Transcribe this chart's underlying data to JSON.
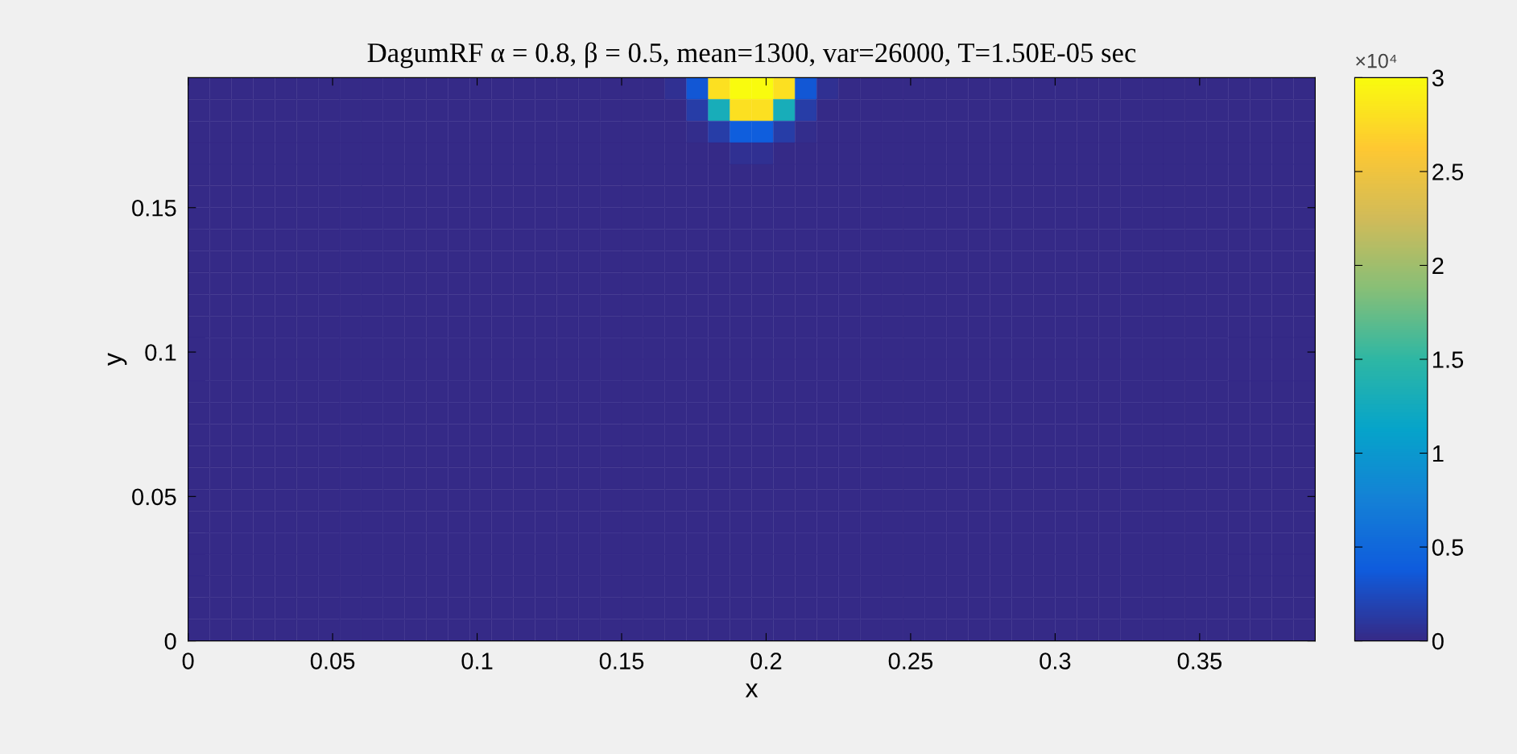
{
  "chart_data": {
    "type": "heatmap",
    "title": "DagumRF α = 0.8, β = 0.5, mean=1300, var=26000, T=1.50E-05 sec",
    "xlabel": "x",
    "ylabel": "y",
    "x": [
      0.00375,
      0.01125,
      0.01875,
      0.02625,
      0.03375,
      0.04125,
      0.04875,
      0.05625,
      0.06375,
      0.07125,
      0.07875,
      0.08625,
      0.09375,
      0.10125,
      0.10875,
      0.11625,
      0.12375,
      0.13125,
      0.13875,
      0.14625,
      0.15375,
      0.16125,
      0.16875,
      0.17625,
      0.18375,
      0.19125,
      0.19875,
      0.20625,
      0.21375,
      0.22125,
      0.22875,
      0.23625,
      0.24375,
      0.25125,
      0.25875,
      0.26625,
      0.27375,
      0.28125,
      0.28875,
      0.29625,
      0.30375,
      0.31125,
      0.31875,
      0.32625,
      0.33375,
      0.34125,
      0.34875,
      0.35625,
      0.36375,
      0.37125,
      0.37875,
      0.38625
    ],
    "y": [
      0.19125,
      0.18375,
      0.17625,
      0.16875,
      0.16125,
      0.15375,
      0.14625,
      0.13875,
      0.13125,
      0.12375,
      0.11625,
      0.10875,
      0.10125,
      0.09375,
      0.08625,
      0.07875,
      0.07125,
      0.06375,
      0.05625,
      0.04875,
      0.04125,
      0.03375,
      0.02625,
      0.01875,
      0.01125,
      0.00375
    ],
    "xlim": [
      0,
      0.39
    ],
    "ylim": [
      0,
      0.195
    ],
    "xticks": [
      0,
      0.05,
      0.1,
      0.15,
      0.2,
      0.25,
      0.3,
      0.35
    ],
    "yticks": [
      0,
      0.05,
      0.1,
      0.15
    ],
    "clim": [
      0,
      3
    ],
    "cticks": [
      0,
      0.5,
      1,
      1.5,
      2,
      2.5,
      3
    ],
    "annotations": [
      "×10⁴"
    ],
    "cells": [
      [
        0,
        0,
        0,
        0,
        0,
        0,
        0,
        0,
        0,
        0,
        0,
        0,
        0,
        0,
        0,
        0,
        0,
        0,
        0,
        0,
        0,
        0,
        0.05,
        0.35,
        2.8,
        3,
        3,
        2.8,
        0.35,
        0.05,
        0,
        0,
        0,
        0,
        0,
        0,
        0,
        0,
        0,
        0,
        0,
        0,
        0,
        0,
        0,
        0,
        0,
        0,
        0,
        0,
        0,
        0
      ],
      [
        0,
        0,
        0,
        0,
        0,
        0,
        0,
        0,
        0,
        0,
        0,
        0,
        0,
        0,
        0,
        0,
        0,
        0,
        0,
        0,
        0,
        0,
        0,
        0.15,
        1.3,
        2.8,
        2.8,
        1.3,
        0.15,
        0,
        0,
        0,
        0,
        0,
        0,
        0,
        0,
        0,
        0,
        0,
        0,
        0,
        0,
        0,
        0,
        0,
        0,
        0,
        0,
        0,
        0,
        0
      ],
      [
        0,
        0,
        0,
        0,
        0,
        0,
        0,
        0,
        0,
        0,
        0,
        0,
        0,
        0,
        0,
        0,
        0,
        0,
        0,
        0,
        0,
        0,
        0,
        0.03,
        0.15,
        0.4,
        0.4,
        0.15,
        0.03,
        0,
        0,
        0,
        0,
        0,
        0,
        0,
        0,
        0,
        0,
        0,
        0,
        0,
        0,
        0,
        0,
        0,
        0,
        0,
        0,
        0,
        0,
        0
      ],
      [
        0,
        0,
        0,
        0,
        0,
        0,
        0,
        0,
        0,
        0,
        0,
        0,
        0,
        0,
        0,
        0,
        0,
        0,
        0,
        0,
        0,
        0,
        0,
        0,
        0,
        0.05,
        0.05,
        0,
        0,
        0,
        0,
        0,
        0,
        0,
        0,
        0,
        0,
        0,
        0,
        0,
        0,
        0,
        0,
        0,
        0,
        0,
        0,
        0,
        0,
        0,
        0,
        0
      ],
      [
        0,
        0,
        0,
        0,
        0,
        0,
        0,
        0,
        0,
        0,
        0,
        0,
        0,
        0,
        0,
        0,
        0,
        0,
        0,
        0,
        0,
        0,
        0,
        0,
        0,
        0,
        0,
        0,
        0,
        0,
        0,
        0,
        0,
        0,
        0,
        0,
        0,
        0,
        0,
        0,
        0,
        0,
        0,
        0,
        0,
        0,
        0,
        0,
        0,
        0,
        0,
        0
      ],
      [
        0,
        0,
        0,
        0,
        0,
        0,
        0,
        0,
        0,
        0,
        0,
        0,
        0,
        0,
        0,
        0,
        0,
        0,
        0,
        0,
        0,
        0,
        0,
        0,
        0,
        0,
        0,
        0,
        0,
        0,
        0,
        0,
        0,
        0,
        0,
        0,
        0,
        0,
        0,
        0,
        0,
        0,
        0,
        0,
        0,
        0,
        0,
        0,
        0,
        0,
        0,
        0
      ],
      [
        0,
        0,
        0,
        0,
        0,
        0,
        0,
        0,
        0,
        0,
        0,
        0,
        0,
        0,
        0,
        0,
        0,
        0,
        0,
        0,
        0,
        0,
        0,
        0,
        0,
        0,
        0,
        0,
        0,
        0,
        0,
        0,
        0,
        0,
        0,
        0,
        0,
        0,
        0,
        0,
        0,
        0,
        0,
        0,
        0,
        0,
        0,
        0,
        0,
        0,
        0,
        0
      ],
      [
        0,
        0,
        0,
        0,
        0,
        0,
        0,
        0,
        0,
        0,
        0,
        0,
        0,
        0,
        0,
        0,
        0,
        0,
        0,
        0,
        0,
        0,
        0,
        0,
        0,
        0,
        0,
        0,
        0,
        0,
        0,
        0,
        0,
        0,
        0,
        0,
        0,
        0,
        0,
        0,
        0,
        0,
        0,
        0,
        0,
        0,
        0,
        0,
        0,
        0,
        0,
        0
      ],
      [
        0,
        0,
        0,
        0,
        0,
        0,
        0,
        0,
        0,
        0,
        0,
        0,
        0,
        0,
        0,
        0,
        0,
        0,
        0,
        0,
        0,
        0,
        0,
        0,
        0,
        0,
        0,
        0,
        0,
        0,
        0,
        0,
        0,
        0,
        0,
        0,
        0,
        0,
        0,
        0,
        0,
        0,
        0,
        0,
        0,
        0,
        0,
        0,
        0,
        0,
        0,
        0
      ],
      [
        0,
        0,
        0,
        0,
        0,
        0,
        0,
        0,
        0,
        0,
        0,
        0,
        0,
        0,
        0,
        0,
        0,
        0,
        0,
        0,
        0,
        0,
        0,
        0,
        0,
        0,
        0,
        0,
        0,
        0,
        0,
        0,
        0,
        0,
        0,
        0,
        0,
        0,
        0,
        0,
        0,
        0,
        0,
        0,
        0,
        0,
        0,
        0,
        0,
        0,
        0,
        0
      ],
      [
        0,
        0,
        0,
        0,
        0,
        0,
        0,
        0,
        0,
        0,
        0,
        0,
        0,
        0,
        0,
        0,
        0,
        0,
        0,
        0,
        0,
        0,
        0,
        0,
        0,
        0,
        0,
        0,
        0,
        0,
        0,
        0,
        0,
        0,
        0,
        0,
        0,
        0,
        0,
        0,
        0,
        0,
        0,
        0,
        0,
        0,
        0,
        0,
        0,
        0,
        0,
        0
      ],
      [
        0,
        0,
        0,
        0,
        0,
        0,
        0,
        0,
        0,
        0,
        0,
        0,
        0,
        0,
        0,
        0,
        0,
        0,
        0,
        0,
        0,
        0,
        0,
        0,
        0,
        0,
        0,
        0,
        0,
        0,
        0,
        0,
        0,
        0,
        0,
        0,
        0,
        0,
        0,
        0,
        0,
        0,
        0,
        0,
        0,
        0,
        0,
        0,
        0,
        0,
        0,
        0
      ],
      [
        0,
        0,
        0,
        0,
        0,
        0,
        0,
        0,
        0,
        0,
        0,
        0,
        0,
        0,
        0,
        0,
        0,
        0,
        0,
        0,
        0,
        0,
        0,
        0,
        0,
        0,
        0,
        0,
        0,
        0,
        0,
        0,
        0,
        0,
        0,
        0,
        0,
        0,
        0,
        0,
        0,
        0,
        0,
        0,
        0,
        0,
        0,
        0,
        0,
        0,
        0,
        0
      ],
      [
        0,
        0,
        0,
        0,
        0,
        0,
        0,
        0,
        0,
        0,
        0,
        0,
        0,
        0,
        0,
        0,
        0,
        0,
        0,
        0,
        0,
        0,
        0,
        0,
        0,
        0,
        0,
        0,
        0,
        0,
        0,
        0,
        0,
        0,
        0,
        0,
        0,
        0,
        0,
        0,
        0,
        0,
        0,
        0,
        0,
        0,
        0,
        0,
        0,
        0,
        0,
        0
      ],
      [
        0,
        0,
        0,
        0,
        0,
        0,
        0,
        0,
        0,
        0,
        0,
        0,
        0,
        0,
        0,
        0,
        0,
        0,
        0,
        0,
        0,
        0,
        0,
        0,
        0,
        0,
        0,
        0,
        0,
        0,
        0,
        0,
        0,
        0,
        0,
        0,
        0,
        0,
        0,
        0,
        0,
        0,
        0,
        0,
        0,
        0,
        0,
        0,
        0,
        0,
        0,
        0
      ],
      [
        0,
        0,
        0,
        0,
        0,
        0,
        0,
        0,
        0,
        0,
        0,
        0,
        0,
        0,
        0,
        0,
        0,
        0,
        0,
        0,
        0,
        0,
        0,
        0,
        0,
        0,
        0,
        0,
        0,
        0,
        0,
        0,
        0,
        0,
        0,
        0,
        0,
        0,
        0,
        0,
        0,
        0,
        0,
        0,
        0,
        0,
        0,
        0,
        0,
        0,
        0,
        0
      ],
      [
        0,
        0,
        0,
        0,
        0,
        0,
        0,
        0,
        0,
        0,
        0,
        0,
        0,
        0,
        0,
        0,
        0,
        0,
        0,
        0,
        0,
        0,
        0,
        0,
        0,
        0,
        0,
        0,
        0,
        0,
        0,
        0,
        0,
        0,
        0,
        0,
        0,
        0,
        0,
        0,
        0,
        0,
        0,
        0,
        0,
        0,
        0,
        0,
        0,
        0,
        0,
        0
      ],
      [
        0,
        0,
        0,
        0,
        0,
        0,
        0,
        0,
        0,
        0,
        0,
        0,
        0,
        0,
        0,
        0,
        0,
        0,
        0,
        0,
        0,
        0,
        0,
        0,
        0,
        0,
        0,
        0,
        0,
        0,
        0,
        0,
        0,
        0,
        0,
        0,
        0,
        0,
        0,
        0,
        0,
        0,
        0,
        0,
        0,
        0,
        0,
        0,
        0,
        0,
        0,
        0
      ],
      [
        0,
        0,
        0,
        0,
        0,
        0,
        0,
        0,
        0,
        0,
        0,
        0,
        0,
        0,
        0,
        0,
        0,
        0,
        0,
        0,
        0,
        0,
        0,
        0,
        0,
        0,
        0,
        0,
        0,
        0,
        0,
        0,
        0,
        0,
        0,
        0,
        0,
        0,
        0,
        0,
        0,
        0,
        0,
        0,
        0,
        0,
        0,
        0,
        0,
        0,
        0,
        0
      ],
      [
        0,
        0,
        0,
        0,
        0,
        0,
        0,
        0,
        0,
        0,
        0,
        0,
        0,
        0,
        0,
        0,
        0,
        0,
        0,
        0,
        0,
        0,
        0,
        0,
        0,
        0,
        0,
        0,
        0,
        0,
        0,
        0,
        0,
        0,
        0,
        0,
        0,
        0,
        0,
        0,
        0,
        0,
        0,
        0,
        0,
        0,
        0,
        0,
        0,
        0,
        0,
        0
      ],
      [
        0,
        0,
        0,
        0,
        0,
        0,
        0,
        0,
        0,
        0,
        0,
        0,
        0,
        0,
        0,
        0,
        0,
        0,
        0,
        0,
        0,
        0,
        0,
        0,
        0,
        0,
        0,
        0,
        0,
        0,
        0,
        0,
        0,
        0,
        0,
        0,
        0,
        0,
        0,
        0,
        0,
        0,
        0,
        0,
        0,
        0,
        0,
        0,
        0,
        0,
        0,
        0
      ],
      [
        0,
        0,
        0,
        0,
        0,
        0,
        0,
        0,
        0,
        0,
        0,
        0,
        0,
        0,
        0,
        0,
        0,
        0,
        0,
        0,
        0,
        0,
        0,
        0,
        0,
        0,
        0,
        0,
        0,
        0,
        0,
        0,
        0,
        0,
        0,
        0,
        0,
        0,
        0,
        0,
        0,
        0,
        0,
        0,
        0,
        0,
        0,
        0,
        0,
        0,
        0,
        0
      ],
      [
        0,
        0,
        0,
        0,
        0,
        0,
        0,
        0,
        0,
        0,
        0,
        0,
        0,
        0,
        0,
        0,
        0,
        0,
        0,
        0,
        0,
        0,
        0,
        0,
        0,
        0,
        0,
        0,
        0,
        0,
        0,
        0,
        0,
        0,
        0,
        0,
        0,
        0,
        0,
        0,
        0,
        0,
        0,
        0,
        0,
        0,
        0,
        0,
        0,
        0,
        0,
        0
      ],
      [
        0,
        0,
        0,
        0,
        0,
        0,
        0,
        0,
        0,
        0,
        0,
        0,
        0,
        0,
        0,
        0,
        0,
        0,
        0,
        0,
        0,
        0,
        0,
        0,
        0,
        0,
        0,
        0,
        0,
        0,
        0,
        0,
        0,
        0,
        0,
        0,
        0,
        0,
        0,
        0,
        0,
        0,
        0,
        0,
        0,
        0,
        0,
        0,
        0,
        0,
        0,
        0
      ],
      [
        0,
        0,
        0,
        0,
        0,
        0,
        0,
        0,
        0,
        0,
        0,
        0,
        0,
        0,
        0,
        0,
        0,
        0,
        0,
        0,
        0,
        0,
        0,
        0,
        0,
        0,
        0,
        0,
        0,
        0,
        0,
        0,
        0,
        0,
        0,
        0,
        0,
        0,
        0,
        0,
        0,
        0,
        0,
        0,
        0,
        0,
        0,
        0,
        0,
        0,
        0,
        0
      ],
      [
        0,
        0,
        0,
        0,
        0,
        0,
        0,
        0,
        0,
        0,
        0,
        0,
        0,
        0,
        0,
        0,
        0,
        0,
        0,
        0,
        0,
        0,
        0,
        0,
        0,
        0,
        0,
        0,
        0,
        0,
        0,
        0,
        0,
        0,
        0,
        0,
        0,
        0,
        0,
        0,
        0,
        0,
        0,
        0,
        0,
        0,
        0,
        0,
        0,
        0,
        0,
        0
      ]
    ]
  }
}
